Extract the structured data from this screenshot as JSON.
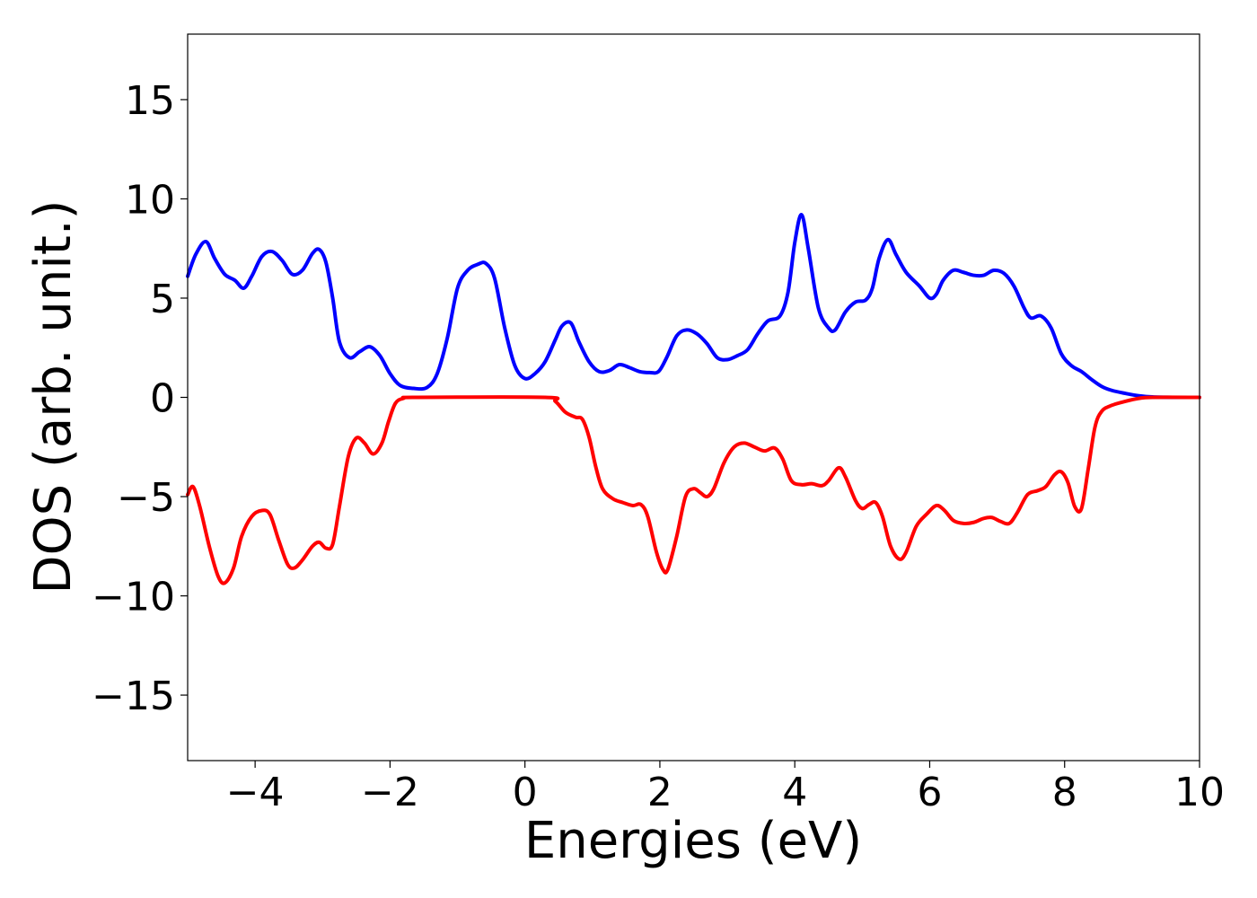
{
  "chart_data": {
    "type": "line",
    "title": "",
    "xlabel": "Energies (eV)",
    "ylabel": "DOS (arb. unit.)",
    "xlim": [
      -5,
      10
    ],
    "ylim": [
      -18.3,
      18.3
    ],
    "xticks": [
      -4,
      -2,
      0,
      2,
      4,
      6,
      8,
      10
    ],
    "xtick_labels": [
      "−4",
      "−2",
      "0",
      "2",
      "4",
      "6",
      "8",
      "10"
    ],
    "yticks": [
      -15,
      -10,
      -5,
      0,
      5,
      10,
      15
    ],
    "ytick_labels": [
      "−15",
      "−10",
      "−5",
      "0",
      "5",
      "10",
      "15"
    ],
    "grid": false,
    "legend": "none",
    "series": [
      {
        "color": "#0000ff",
        "points": [
          [
            -5.0,
            6.1
          ],
          [
            -4.88,
            7.2
          ],
          [
            -4.73,
            7.85
          ],
          [
            -4.6,
            7.0
          ],
          [
            -4.45,
            6.2
          ],
          [
            -4.3,
            5.9
          ],
          [
            -4.17,
            5.5
          ],
          [
            -4.05,
            6.1
          ],
          [
            -3.9,
            7.1
          ],
          [
            -3.75,
            7.35
          ],
          [
            -3.6,
            6.9
          ],
          [
            -3.45,
            6.2
          ],
          [
            -3.3,
            6.4
          ],
          [
            -3.15,
            7.25
          ],
          [
            -3.05,
            7.45
          ],
          [
            -2.95,
            6.8
          ],
          [
            -2.85,
            5.0
          ],
          [
            -2.75,
            2.8
          ],
          [
            -2.6,
            2.0
          ],
          [
            -2.45,
            2.3
          ],
          [
            -2.3,
            2.55
          ],
          [
            -2.15,
            2.1
          ],
          [
            -2.0,
            1.2
          ],
          [
            -1.85,
            0.6
          ],
          [
            -1.65,
            0.45
          ],
          [
            -1.45,
            0.5
          ],
          [
            -1.3,
            1.2
          ],
          [
            -1.15,
            3.0
          ],
          [
            -1.0,
            5.5
          ],
          [
            -0.85,
            6.4
          ],
          [
            -0.7,
            6.7
          ],
          [
            -0.58,
            6.75
          ],
          [
            -0.45,
            6.0
          ],
          [
            -0.3,
            3.5
          ],
          [
            -0.15,
            1.6
          ],
          [
            0.0,
            0.95
          ],
          [
            0.15,
            1.2
          ],
          [
            0.3,
            1.8
          ],
          [
            0.45,
            2.9
          ],
          [
            0.55,
            3.6
          ],
          [
            0.68,
            3.75
          ],
          [
            0.8,
            2.8
          ],
          [
            0.95,
            1.8
          ],
          [
            1.1,
            1.3
          ],
          [
            1.25,
            1.35
          ],
          [
            1.4,
            1.65
          ],
          [
            1.55,
            1.5
          ],
          [
            1.7,
            1.3
          ],
          [
            1.85,
            1.25
          ],
          [
            1.98,
            1.3
          ],
          [
            2.1,
            2.0
          ],
          [
            2.25,
            3.1
          ],
          [
            2.4,
            3.4
          ],
          [
            2.55,
            3.2
          ],
          [
            2.7,
            2.7
          ],
          [
            2.85,
            2.0
          ],
          [
            3.0,
            1.9
          ],
          [
            3.15,
            2.1
          ],
          [
            3.3,
            2.4
          ],
          [
            3.45,
            3.2
          ],
          [
            3.6,
            3.85
          ],
          [
            3.78,
            4.1
          ],
          [
            3.9,
            5.3
          ],
          [
            4.0,
            7.8
          ],
          [
            4.1,
            9.2
          ],
          [
            4.2,
            7.5
          ],
          [
            4.35,
            4.5
          ],
          [
            4.5,
            3.5
          ],
          [
            4.6,
            3.4
          ],
          [
            4.75,
            4.3
          ],
          [
            4.9,
            4.8
          ],
          [
            5.05,
            4.9
          ],
          [
            5.15,
            5.5
          ],
          [
            5.25,
            7.0
          ],
          [
            5.38,
            7.95
          ],
          [
            5.5,
            7.2
          ],
          [
            5.65,
            6.3
          ],
          [
            5.85,
            5.6
          ],
          [
            6.0,
            5.0
          ],
          [
            6.1,
            5.2
          ],
          [
            6.2,
            5.9
          ],
          [
            6.35,
            6.4
          ],
          [
            6.5,
            6.3
          ],
          [
            6.65,
            6.15
          ],
          [
            6.8,
            6.15
          ],
          [
            6.95,
            6.4
          ],
          [
            7.1,
            6.25
          ],
          [
            7.25,
            5.6
          ],
          [
            7.4,
            4.5
          ],
          [
            7.5,
            4.0
          ],
          [
            7.65,
            4.1
          ],
          [
            7.8,
            3.5
          ],
          [
            7.95,
            2.2
          ],
          [
            8.1,
            1.6
          ],
          [
            8.25,
            1.3
          ],
          [
            8.4,
            0.9
          ],
          [
            8.55,
            0.55
          ],
          [
            8.7,
            0.35
          ],
          [
            8.9,
            0.2
          ],
          [
            9.1,
            0.08
          ],
          [
            9.3,
            0.02
          ],
          [
            9.6,
            0.0
          ],
          [
            10.0,
            0.0
          ]
        ]
      },
      {
        "color": "#ff0000",
        "points": [
          [
            -5.0,
            -4.9
          ],
          [
            -4.92,
            -4.5
          ],
          [
            -4.82,
            -5.5
          ],
          [
            -4.68,
            -7.5
          ],
          [
            -4.55,
            -9.0
          ],
          [
            -4.45,
            -9.35
          ],
          [
            -4.32,
            -8.6
          ],
          [
            -4.2,
            -7.0
          ],
          [
            -4.05,
            -6.0
          ],
          [
            -3.9,
            -5.7
          ],
          [
            -3.78,
            -5.9
          ],
          [
            -3.65,
            -7.2
          ],
          [
            -3.52,
            -8.4
          ],
          [
            -3.42,
            -8.6
          ],
          [
            -3.3,
            -8.2
          ],
          [
            -3.15,
            -7.5
          ],
          [
            -3.05,
            -7.3
          ],
          [
            -2.95,
            -7.6
          ],
          [
            -2.85,
            -7.4
          ],
          [
            -2.75,
            -5.5
          ],
          [
            -2.62,
            -3.0
          ],
          [
            -2.5,
            -2.05
          ],
          [
            -2.38,
            -2.3
          ],
          [
            -2.25,
            -2.85
          ],
          [
            -2.12,
            -2.3
          ],
          [
            -2.02,
            -1.2
          ],
          [
            -1.92,
            -0.3
          ],
          [
            -1.8,
            -0.05
          ],
          [
            -1.6,
            0.0
          ],
          [
            0.3,
            0.0
          ],
          [
            0.45,
            -0.2
          ],
          [
            0.6,
            -0.75
          ],
          [
            0.75,
            -1.0
          ],
          [
            0.85,
            -1.1
          ],
          [
            0.95,
            -2.0
          ],
          [
            1.05,
            -3.5
          ],
          [
            1.15,
            -4.6
          ],
          [
            1.3,
            -5.1
          ],
          [
            1.45,
            -5.3
          ],
          [
            1.6,
            -5.45
          ],
          [
            1.72,
            -5.4
          ],
          [
            1.82,
            -6.0
          ],
          [
            1.95,
            -7.8
          ],
          [
            2.05,
            -8.7
          ],
          [
            2.12,
            -8.65
          ],
          [
            2.25,
            -7.0
          ],
          [
            2.38,
            -5.0
          ],
          [
            2.5,
            -4.6
          ],
          [
            2.6,
            -4.8
          ],
          [
            2.7,
            -5.0
          ],
          [
            2.8,
            -4.6
          ],
          [
            2.95,
            -3.3
          ],
          [
            3.1,
            -2.5
          ],
          [
            3.25,
            -2.3
          ],
          [
            3.4,
            -2.5
          ],
          [
            3.55,
            -2.7
          ],
          [
            3.7,
            -2.55
          ],
          [
            3.82,
            -3.1
          ],
          [
            3.95,
            -4.2
          ],
          [
            4.1,
            -4.4
          ],
          [
            4.25,
            -4.35
          ],
          [
            4.4,
            -4.45
          ],
          [
            4.5,
            -4.2
          ],
          [
            4.65,
            -3.55
          ],
          [
            4.75,
            -4.0
          ],
          [
            4.9,
            -5.2
          ],
          [
            5.0,
            -5.6
          ],
          [
            5.1,
            -5.4
          ],
          [
            5.2,
            -5.3
          ],
          [
            5.3,
            -6.0
          ],
          [
            5.42,
            -7.5
          ],
          [
            5.55,
            -8.15
          ],
          [
            5.65,
            -7.8
          ],
          [
            5.8,
            -6.5
          ],
          [
            5.95,
            -5.9
          ],
          [
            6.1,
            -5.45
          ],
          [
            6.22,
            -5.7
          ],
          [
            6.35,
            -6.2
          ],
          [
            6.5,
            -6.35
          ],
          [
            6.65,
            -6.3
          ],
          [
            6.8,
            -6.1
          ],
          [
            6.92,
            -6.05
          ],
          [
            7.05,
            -6.25
          ],
          [
            7.18,
            -6.35
          ],
          [
            7.3,
            -5.8
          ],
          [
            7.45,
            -4.9
          ],
          [
            7.6,
            -4.7
          ],
          [
            7.72,
            -4.5
          ],
          [
            7.85,
            -3.9
          ],
          [
            7.95,
            -3.75
          ],
          [
            8.05,
            -4.3
          ],
          [
            8.15,
            -5.5
          ],
          [
            8.25,
            -5.6
          ],
          [
            8.35,
            -3.6
          ],
          [
            8.45,
            -1.5
          ],
          [
            8.55,
            -0.7
          ],
          [
            8.7,
            -0.4
          ],
          [
            8.9,
            -0.2
          ],
          [
            9.1,
            -0.05
          ],
          [
            9.3,
            0.0
          ],
          [
            10.0,
            0.0
          ]
        ]
      }
    ]
  }
}
